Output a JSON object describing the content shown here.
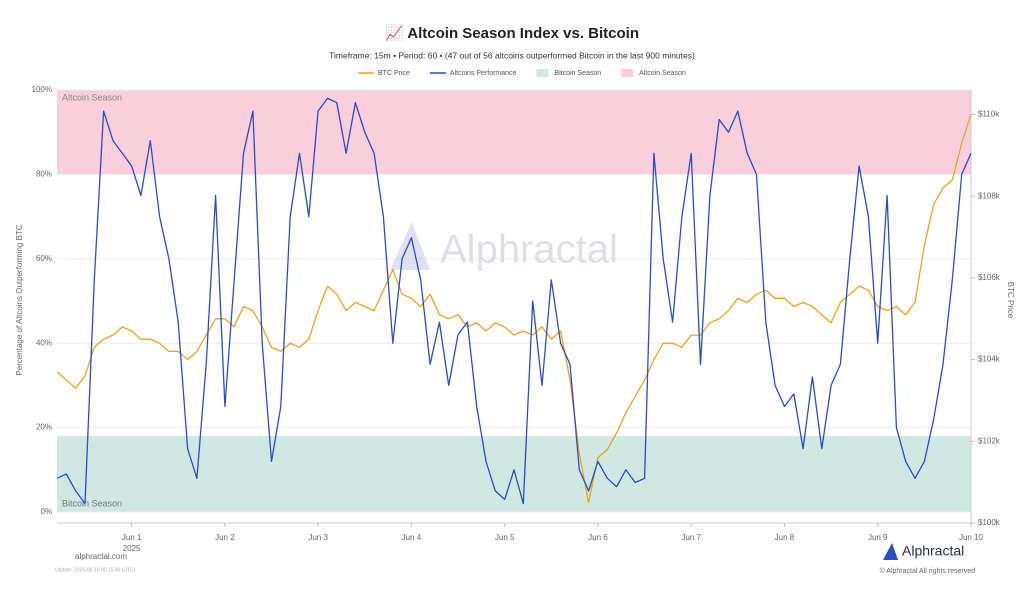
{
  "chart_data": {
    "type": "line",
    "title": "📈 Altcoin Season Index vs. Bitcoin",
    "subtitle": "Timeframe: 15m • Period: 60 • (47 out of 56 altcoins outperformed Bitcoin in the last 900 minutes)",
    "y_label": "Percentage of Altcoins Outperforming BTC",
    "y2_label": "BTC Price",
    "x_year_label": "2025",
    "watermark": "Alphractal",
    "footer": {
      "site": "alphractal.com",
      "update": "Update: 2025-06-10 00:15:00 (UTC)",
      "copyright": "© Alphractal All rights reserved",
      "logo": "Alphractal"
    },
    "xlim": [
      0.2,
      10.0
    ],
    "xticks": [
      {
        "value": 1,
        "label": "Jun 1"
      },
      {
        "value": 2,
        "label": "Jun 2"
      },
      {
        "value": 3,
        "label": "Jun 3"
      },
      {
        "value": 4,
        "label": "Jun 4"
      },
      {
        "value": 5,
        "label": "Jun 5"
      },
      {
        "value": 6,
        "label": "Jun 6"
      },
      {
        "value": 7,
        "label": "Jun 7"
      },
      {
        "value": 8,
        "label": "Jun 8"
      },
      {
        "value": 9,
        "label": "Jun 9"
      },
      {
        "value": 10,
        "label": "Jun 10"
      }
    ],
    "ylim": [
      -2.6,
      100
    ],
    "yticks": [
      {
        "value": 0,
        "label": "0%"
      },
      {
        "value": 20,
        "label": "20%"
      },
      {
        "value": 40,
        "label": "40%"
      },
      {
        "value": 60,
        "label": "60%"
      },
      {
        "value": 80,
        "label": "80%"
      },
      {
        "value": 100,
        "label": "100%"
      }
    ],
    "y2lim": [
      100000,
      110600
    ],
    "y2ticks": [
      {
        "value": 100000,
        "label": "$100k"
      },
      {
        "value": 102000,
        "label": "$102k"
      },
      {
        "value": 104000,
        "label": "$104k"
      },
      {
        "value": 106000,
        "label": "$106k"
      },
      {
        "value": 108000,
        "label": "$108k"
      },
      {
        "value": 110000,
        "label": "$110k"
      }
    ],
    "grid": true,
    "bands": [
      {
        "name": "Bitcoin Season",
        "from": 0,
        "to": 18,
        "color": "#cfe9e2"
      },
      {
        "name": "Altcoin Season",
        "from": 80,
        "to": 100,
        "color": "#f9cfdb"
      }
    ],
    "x": [
      0.2,
      0.3,
      0.4,
      0.5,
      0.6,
      0.7,
      0.8,
      0.9,
      1.0,
      1.1,
      1.2,
      1.3,
      1.4,
      1.5,
      1.6,
      1.7,
      1.8,
      1.9,
      2.0,
      2.1,
      2.2,
      2.3,
      2.4,
      2.5,
      2.6,
      2.7,
      2.8,
      2.9,
      3.0,
      3.1,
      3.2,
      3.3,
      3.4,
      3.5,
      3.6,
      3.7,
      3.8,
      3.9,
      4.0,
      4.1,
      4.2,
      4.3,
      4.4,
      4.5,
      4.6,
      4.7,
      4.8,
      4.9,
      5.0,
      5.1,
      5.2,
      5.3,
      5.4,
      5.5,
      5.6,
      5.7,
      5.8,
      5.9,
      6.0,
      6.1,
      6.2,
      6.3,
      6.4,
      6.5,
      6.6,
      6.7,
      6.8,
      6.9,
      7.0,
      7.1,
      7.2,
      7.3,
      7.4,
      7.5,
      7.6,
      7.7,
      7.8,
      7.9,
      8.0,
      8.1,
      8.2,
      8.3,
      8.4,
      8.5,
      8.6,
      8.7,
      8.8,
      8.9,
      9.0,
      9.1,
      9.2,
      9.3,
      9.4,
      9.5,
      9.6,
      9.7,
      9.8,
      9.9,
      10.0
    ],
    "series": [
      {
        "name": "BTC Price",
        "color": "#e8a41c",
        "axis": "y2",
        "values": [
          103700,
          103500,
          103300,
          103600,
          104300,
          104500,
          104600,
          104800,
          104700,
          104500,
          104500,
          104400,
          104200,
          104200,
          104000,
          104200,
          104600,
          105000,
          105000,
          104800,
          105300,
          105200,
          104800,
          104300,
          104200,
          104400,
          104300,
          104500,
          105200,
          105800,
          105600,
          105200,
          105400,
          105300,
          105200,
          105700,
          106200,
          105600,
          105500,
          105300,
          105600,
          105100,
          105000,
          105100,
          104800,
          104900,
          104700,
          104900,
          104800,
          104600,
          104700,
          104600,
          104800,
          104500,
          104700,
          103500,
          101700,
          100500,
          101600,
          101800,
          102200,
          102700,
          103100,
          103500,
          104000,
          104400,
          104400,
          104300,
          104600,
          104600,
          104900,
          105000,
          105200,
          105500,
          105400,
          105600,
          105700,
          105500,
          105500,
          105300,
          105400,
          105300,
          105100,
          104900,
          105400,
          105600,
          105800,
          105700,
          105300,
          105200,
          105300,
          105100,
          105400,
          106800,
          107800,
          108200,
          108400,
          109300,
          110000
        ]
      },
      {
        "name": "Altcoins Performance",
        "color": "#2b4cc6",
        "values": [
          8,
          9,
          5,
          2,
          55,
          95,
          88,
          85,
          82,
          75,
          88,
          70,
          60,
          45,
          15,
          8,
          35,
          75,
          25,
          55,
          85,
          95,
          40,
          12,
          25,
          70,
          85,
          70,
          95,
          98,
          97,
          85,
          97,
          90,
          85,
          70,
          40,
          60,
          65,
          55,
          35,
          45,
          30,
          42,
          45,
          25,
          12,
          5,
          3,
          10,
          2,
          50,
          30,
          55,
          40,
          35,
          10,
          5,
          12,
          8,
          6,
          10,
          7,
          8,
          85,
          60,
          45,
          70,
          85,
          35,
          75,
          93,
          90,
          95,
          85,
          80,
          45,
          30,
          25,
          28,
          15,
          32,
          15,
          30,
          35,
          60,
          82,
          70,
          40,
          75,
          20,
          12,
          8,
          12,
          22,
          35,
          55,
          80,
          85
        ]
      }
    ]
  }
}
